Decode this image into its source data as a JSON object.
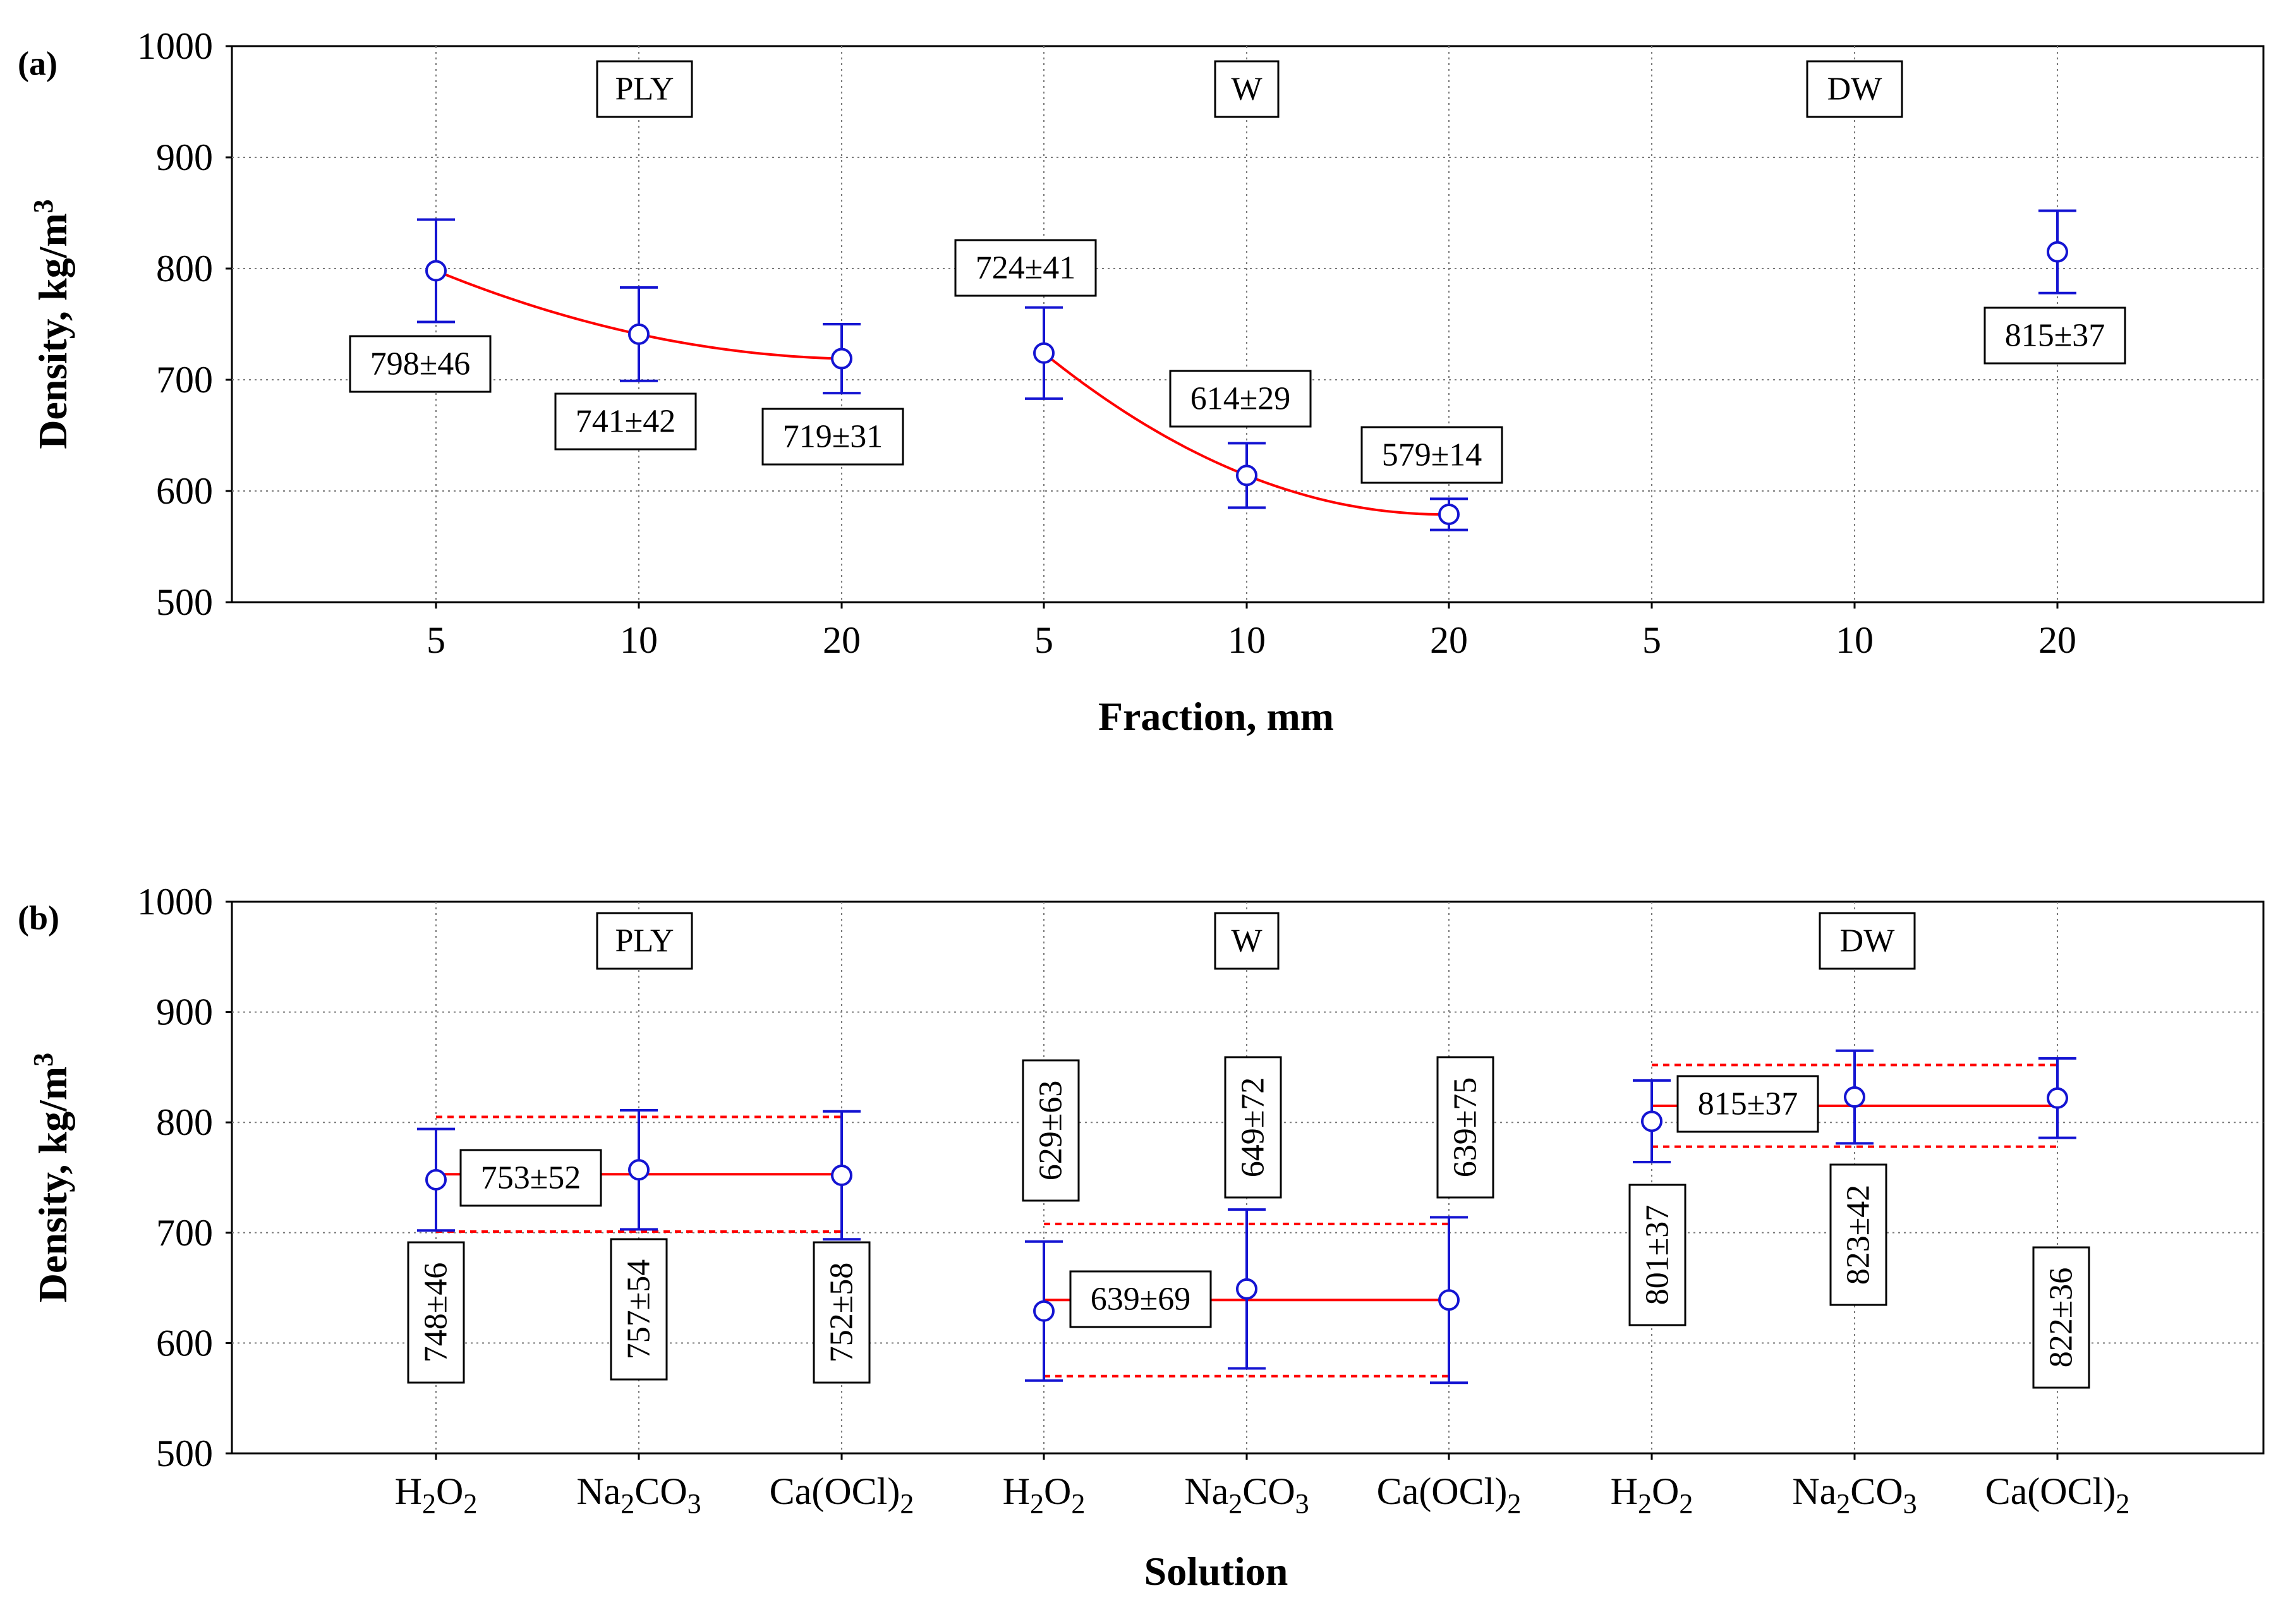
{
  "chart_data": [
    {
      "type": "scatter",
      "panel_label": "(a)",
      "xlabel": "Fraction, mm",
      "ylabel": "Density, kg/m",
      "ylabel_sup": "3",
      "ylim": [
        500,
        1000
      ],
      "yticks": [
        "500",
        "600",
        "700",
        "800",
        "900",
        "1000"
      ],
      "grid": true,
      "categories": [
        "5",
        "10",
        "20",
        "5",
        "10",
        "20",
        "5",
        "10",
        "20"
      ],
      "groups": [
        "PLY",
        "W",
        "DW"
      ],
      "points": [
        {
          "cat": 0,
          "value": 798,
          "err": 46,
          "label": "798±46"
        },
        {
          "cat": 1,
          "value": 741,
          "err": 42,
          "label": "741±42"
        },
        {
          "cat": 2,
          "value": 719,
          "err": 31,
          "label": "719±31"
        },
        {
          "cat": 3,
          "value": 724,
          "err": 41,
          "label": "724±41"
        },
        {
          "cat": 4,
          "value": 614,
          "err": 29,
          "label": "614±29"
        },
        {
          "cat": 5,
          "value": 579,
          "err": 14,
          "label": "579±14"
        },
        {
          "cat": 8,
          "value": 815,
          "err": 37,
          "label": "815±37"
        }
      ],
      "fit_curves": [
        {
          "group": "PLY",
          "x": [
            0,
            1,
            2
          ],
          "y": [
            798,
            741,
            719
          ]
        },
        {
          "group": "W",
          "x": [
            3,
            4,
            5
          ],
          "y": [
            724,
            614,
            579
          ]
        }
      ]
    },
    {
      "type": "scatter",
      "panel_label": "(b)",
      "xlabel": "Solution",
      "ylabel": "Density, kg/m",
      "ylabel_sup": "3",
      "ylim": [
        500,
        1000
      ],
      "yticks": [
        "500",
        "600",
        "700",
        "800",
        "900",
        "1000"
      ],
      "grid": true,
      "categories": [
        {
          "base": "H",
          "sub1": "2",
          "mid": "O",
          "sub2": "2",
          "tail": ""
        },
        {
          "base": "Na",
          "sub1": "2",
          "mid": "CO",
          "sub2": "3",
          "tail": ""
        },
        {
          "base": "Ca(OCl)",
          "sub1": "2",
          "mid": "",
          "sub2": "",
          "tail": ""
        },
        {
          "base": "H",
          "sub1": "2",
          "mid": "O",
          "sub2": "2",
          "tail": ""
        },
        {
          "base": "Na",
          "sub1": "2",
          "mid": "CO",
          "sub2": "3",
          "tail": ""
        },
        {
          "base": "Ca(OCl)",
          "sub1": "2",
          "mid": "",
          "sub2": "",
          "tail": ""
        },
        {
          "base": "H",
          "sub1": "2",
          "mid": "O",
          "sub2": "2",
          "tail": ""
        },
        {
          "base": "Na",
          "sub1": "2",
          "mid": "CO",
          "sub2": "3",
          "tail": ""
        },
        {
          "base": "Ca(OCl)",
          "sub1": "2",
          "mid": "",
          "sub2": "",
          "tail": ""
        }
      ],
      "groups": [
        "PLY",
        "W",
        "DW"
      ],
      "points": [
        {
          "cat": 0,
          "value": 748,
          "err": 46,
          "label": "748±46"
        },
        {
          "cat": 1,
          "value": 757,
          "err": 54,
          "label": "757±54"
        },
        {
          "cat": 2,
          "value": 752,
          "err": 58,
          "label": "752±58"
        },
        {
          "cat": 3,
          "value": 629,
          "err": 63,
          "label": "629±63"
        },
        {
          "cat": 4,
          "value": 649,
          "err": 72,
          "label": "649±72"
        },
        {
          "cat": 5,
          "value": 639,
          "err": 75,
          "label": "639±75"
        },
        {
          "cat": 6,
          "value": 801,
          "err": 37,
          "label": "801±37"
        },
        {
          "cat": 7,
          "value": 823,
          "err": 42,
          "label": "823±42"
        },
        {
          "cat": 8,
          "value": 822,
          "err": 36,
          "label": "822±36"
        }
      ],
      "group_means": [
        {
          "group": "PLY",
          "from": 0,
          "to": 2,
          "mean": 753,
          "sd": 52,
          "label": "753±52"
        },
        {
          "group": "W",
          "from": 3,
          "to": 5,
          "mean": 639,
          "sd": 69,
          "label": "639±69"
        },
        {
          "group": "DW",
          "from": 6,
          "to": 8,
          "mean": 815,
          "sd": 37,
          "label": "815±37"
        }
      ]
    }
  ],
  "colors": {
    "marker": "#1414d2",
    "fit": "#ff0000",
    "grid": "#7a7a7a",
    "axis": "#000000"
  }
}
